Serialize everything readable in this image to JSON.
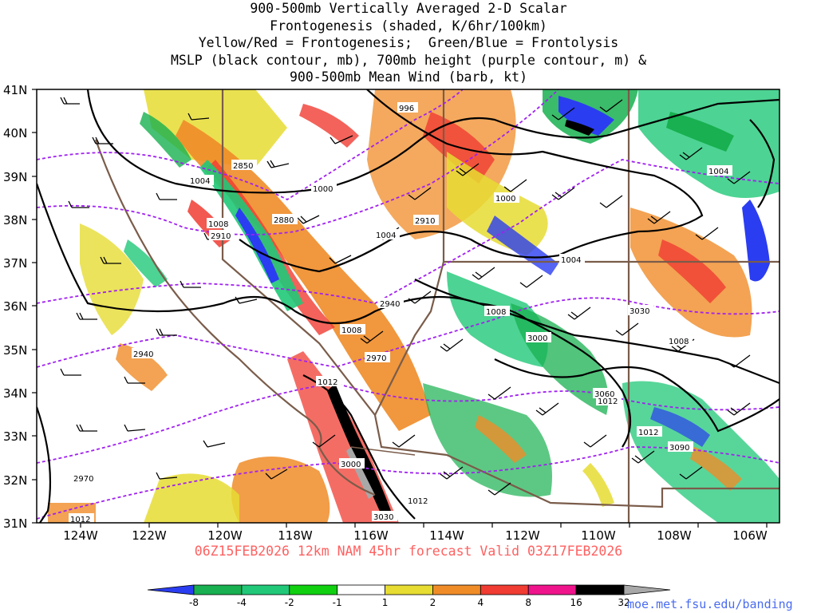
{
  "title_lines": [
    "900-500mb Vertically Averaged 2-D Scalar",
    "Frontogenesis (shaded, K/6hr/100km)",
    "Yellow/Red = Frontogenesis;  Green/Blue = Frontolysis",
    "MSLP (black contour, mb), 700mb height (purple contour, m) &",
    "900-500mb Mean Wind (barb, kt)"
  ],
  "subtitle": "06Z15FEB2026 12km NAM 45hr forecast Valid 03Z17FEB2026",
  "credit": "moe.met.fsu.edu/banding",
  "latitude_labels": [
    "41N",
    "40N",
    "39N",
    "38N",
    "37N",
    "36N",
    "35N",
    "34N",
    "33N",
    "32N",
    "31N"
  ],
  "longitude_labels": [
    "124W",
    "122W",
    "120W",
    "118W",
    "116W",
    "114W",
    "112W",
    "110W",
    "108W",
    "106W"
  ],
  "mslp_labels": [
    "996",
    "1000",
    "1000",
    "1004",
    "1004",
    "1004",
    "1008",
    "1008",
    "1008",
    "1008",
    "1004",
    "1012",
    "1012",
    "1012",
    "1012",
    "1012"
  ],
  "height_labels": [
    "2850",
    "2880",
    "2910",
    "2910",
    "2940",
    "2940",
    "2970",
    "2970",
    "3000",
    "3000",
    "3030",
    "3030",
    "3060",
    "3090"
  ],
  "colorbar": {
    "labels": [
      "-8",
      "-4",
      "-2",
      "-1",
      "1",
      "2",
      "4",
      "8",
      "16",
      "32"
    ],
    "colors": [
      "#2b3df0",
      "#18b050",
      "#20c878",
      "#10d010",
      "#ffffff",
      "#e6dc32",
      "#f08c28",
      "#f03c32",
      "#f0148c",
      "#000000",
      "#a8a8a8"
    ]
  },
  "line_colors": {
    "mslp": "#000000",
    "height": "#a020f0",
    "border": "#7a5c4a"
  }
}
